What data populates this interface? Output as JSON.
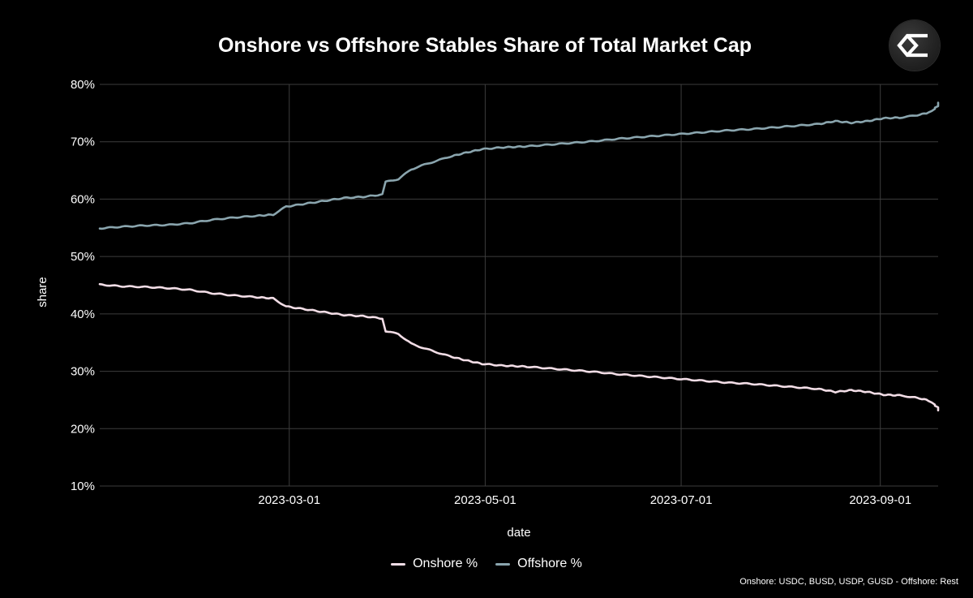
{
  "chart_data": {
    "type": "line",
    "title": "Onshore vs Offshore Stables Share of Total Market Cap",
    "xlabel": "date",
    "ylabel": "share",
    "x_range": [
      "2023-01-01",
      "2023-09-19"
    ],
    "ylim": [
      10,
      80
    ],
    "y_ticks": [
      10,
      20,
      30,
      40,
      50,
      60,
      70,
      80
    ],
    "y_tick_labels": [
      "10%",
      "20%",
      "30%",
      "40%",
      "50%",
      "60%",
      "70%",
      "80%"
    ],
    "x_ticks": [
      "2023-03-01",
      "2023-05-01",
      "2023-07-01",
      "2023-09-01"
    ],
    "x_tick_labels": [
      "2023-03-01",
      "2023-05-01",
      "2023-07-01",
      "2023-09-01"
    ],
    "grid": true,
    "legend_position": "bottom-center",
    "series": [
      {
        "name": "Onshore %",
        "color": "#f2dde6",
        "points": [
          [
            "2023-01-01",
            45.1
          ],
          [
            "2023-01-08",
            44.8
          ],
          [
            "2023-01-15",
            44.7
          ],
          [
            "2023-01-22",
            44.5
          ],
          [
            "2023-01-29",
            44.2
          ],
          [
            "2023-02-05",
            43.6
          ],
          [
            "2023-02-12",
            43.2
          ],
          [
            "2023-02-19",
            42.9
          ],
          [
            "2023-02-24",
            42.7
          ],
          [
            "2023-02-28",
            41.3
          ],
          [
            "2023-03-06",
            40.8
          ],
          [
            "2023-03-12",
            40.3
          ],
          [
            "2023-03-18",
            39.8
          ],
          [
            "2023-03-24",
            39.6
          ],
          [
            "2023-03-30",
            39.2
          ],
          [
            "2023-03-31",
            37.0
          ],
          [
            "2023-04-04",
            36.5
          ],
          [
            "2023-04-08",
            34.8
          ],
          [
            "2023-04-12",
            34.0
          ],
          [
            "2023-04-16",
            33.3
          ],
          [
            "2023-04-20",
            32.6
          ],
          [
            "2023-04-25",
            31.9
          ],
          [
            "2023-04-30",
            31.3
          ],
          [
            "2023-05-06",
            31.0
          ],
          [
            "2023-05-14",
            30.8
          ],
          [
            "2023-05-21",
            30.5
          ],
          [
            "2023-05-28",
            30.2
          ],
          [
            "2023-06-04",
            29.9
          ],
          [
            "2023-06-11",
            29.5
          ],
          [
            "2023-06-18",
            29.2
          ],
          [
            "2023-06-25",
            28.9
          ],
          [
            "2023-07-02",
            28.6
          ],
          [
            "2023-07-09",
            28.3
          ],
          [
            "2023-07-16",
            28.0
          ],
          [
            "2023-07-23",
            27.8
          ],
          [
            "2023-07-30",
            27.5
          ],
          [
            "2023-08-06",
            27.2
          ],
          [
            "2023-08-13",
            26.9
          ],
          [
            "2023-08-18",
            26.4
          ],
          [
            "2023-08-23",
            26.7
          ],
          [
            "2023-08-28",
            26.4
          ],
          [
            "2023-09-02",
            25.9
          ],
          [
            "2023-09-07",
            25.8
          ],
          [
            "2023-09-11",
            25.5
          ],
          [
            "2023-09-14",
            25.2
          ],
          [
            "2023-09-16",
            24.9
          ],
          [
            "2023-09-17",
            24.6
          ],
          [
            "2023-09-18",
            24.2
          ],
          [
            "2023-09-18",
            24.2
          ],
          [
            "2023-09-18",
            24.0
          ],
          [
            "2023-09-19",
            23.7
          ],
          [
            "2023-09-19",
            23.5
          ],
          [
            "2023-09-19",
            23.2
          ]
        ]
      },
      {
        "name": "Offshore %",
        "color": "#8aa5ae",
        "points": [
          [
            "2023-01-01",
            54.9
          ],
          [
            "2023-01-08",
            55.2
          ],
          [
            "2023-01-15",
            55.4
          ],
          [
            "2023-01-22",
            55.5
          ],
          [
            "2023-01-29",
            55.8
          ],
          [
            "2023-02-05",
            56.4
          ],
          [
            "2023-02-12",
            56.8
          ],
          [
            "2023-02-19",
            57.1
          ],
          [
            "2023-02-24",
            57.3
          ],
          [
            "2023-02-28",
            58.7
          ],
          [
            "2023-03-06",
            59.2
          ],
          [
            "2023-03-12",
            59.7
          ],
          [
            "2023-03-18",
            60.2
          ],
          [
            "2023-03-24",
            60.4
          ],
          [
            "2023-03-30",
            60.8
          ],
          [
            "2023-03-31",
            63.0
          ],
          [
            "2023-04-04",
            63.5
          ],
          [
            "2023-04-08",
            65.2
          ],
          [
            "2023-04-12",
            66.0
          ],
          [
            "2023-04-16",
            66.7
          ],
          [
            "2023-04-20",
            67.4
          ],
          [
            "2023-04-25",
            68.1
          ],
          [
            "2023-04-30",
            68.7
          ],
          [
            "2023-05-06",
            69.0
          ],
          [
            "2023-05-14",
            69.2
          ],
          [
            "2023-05-21",
            69.5
          ],
          [
            "2023-05-28",
            69.8
          ],
          [
            "2023-06-04",
            70.1
          ],
          [
            "2023-06-11",
            70.5
          ],
          [
            "2023-06-18",
            70.8
          ],
          [
            "2023-06-25",
            71.1
          ],
          [
            "2023-07-02",
            71.4
          ],
          [
            "2023-07-09",
            71.7
          ],
          [
            "2023-07-16",
            72.0
          ],
          [
            "2023-07-23",
            72.2
          ],
          [
            "2023-07-30",
            72.5
          ],
          [
            "2023-08-06",
            72.8
          ],
          [
            "2023-08-13",
            73.1
          ],
          [
            "2023-08-18",
            73.6
          ],
          [
            "2023-08-23",
            73.3
          ],
          [
            "2023-08-28",
            73.6
          ],
          [
            "2023-09-02",
            74.1
          ],
          [
            "2023-09-07",
            74.2
          ],
          [
            "2023-09-11",
            74.5
          ],
          [
            "2023-09-14",
            74.8
          ],
          [
            "2023-09-16",
            75.1
          ],
          [
            "2023-09-17",
            75.4
          ],
          [
            "2023-09-18",
            75.8
          ],
          [
            "2023-09-18",
            75.8
          ],
          [
            "2023-09-18",
            76.0
          ],
          [
            "2023-09-19",
            76.3
          ],
          [
            "2023-09-19",
            76.5
          ],
          [
            "2023-09-19",
            76.8
          ]
        ]
      }
    ]
  },
  "legend": {
    "items": [
      {
        "label": "Onshore %",
        "color": "#f2dde6"
      },
      {
        "label": "Offshore %",
        "color": "#8aa5ae"
      }
    ]
  },
  "footnote": "Onshore: USDC, BUSD, USDP, GUSD - Offshore: Rest",
  "logo": {
    "icon": "sigma-logo-icon"
  },
  "colors": {
    "background": "#000000",
    "grid": "#3d3d3d",
    "text": "#ffffff"
  }
}
